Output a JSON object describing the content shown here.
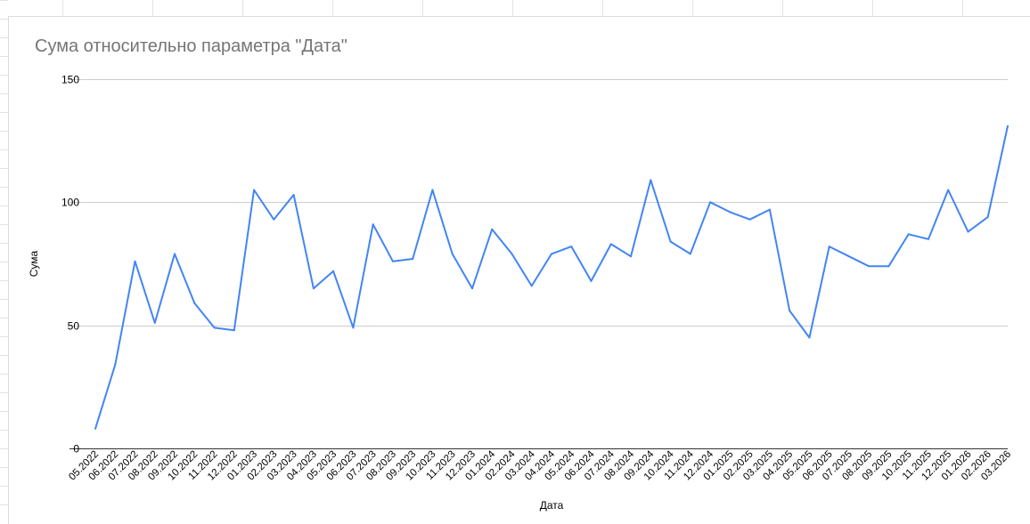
{
  "chart_data": {
    "type": "line",
    "title": "Сума относительно параметра \"Дата\"",
    "xlabel": "Дата",
    "ylabel": "Сума",
    "ylim": [
      0,
      150
    ],
    "yticks": [
      "0",
      "50",
      "100",
      "150"
    ],
    "grid": true,
    "legend": "none",
    "line_color": "#4285f4",
    "categories": [
      "05.2022",
      "06.2022",
      "07.2022",
      "08.2022",
      "09.2022",
      "10.2022",
      "11.2022",
      "12.2022",
      "01.2023",
      "02.2023",
      "03.2023",
      "04.2023",
      "05.2023",
      "06.2023",
      "07.2023",
      "08.2023",
      "09.2023",
      "10.2023",
      "11.2023",
      "12.2023",
      "01.2024",
      "02.2024",
      "03.2024",
      "04.2024",
      "05.2024",
      "06.2024",
      "07.2024",
      "08.2024",
      "09.2024",
      "10.2024",
      "11.2024",
      "12.2024",
      "01.2025",
      "02.2025",
      "03.2025",
      "04.2025",
      "05.2025",
      "06.2025",
      "07.2025",
      "08.2025",
      "09.2025",
      "10.2025",
      "11.2025",
      "12.2025",
      "01.2026",
      "02.2026",
      "03.2026"
    ],
    "values": [
      8,
      34,
      76,
      51,
      79,
      59,
      49,
      48,
      105,
      93,
      103,
      65,
      72,
      49,
      91,
      76,
      77,
      105,
      79,
      65,
      89,
      79,
      66,
      79,
      82,
      68,
      83,
      78,
      109,
      84,
      79,
      100,
      96,
      93,
      97,
      56,
      45,
      82,
      78,
      74,
      74,
      87,
      85,
      105,
      88,
      94,
      131
    ]
  }
}
